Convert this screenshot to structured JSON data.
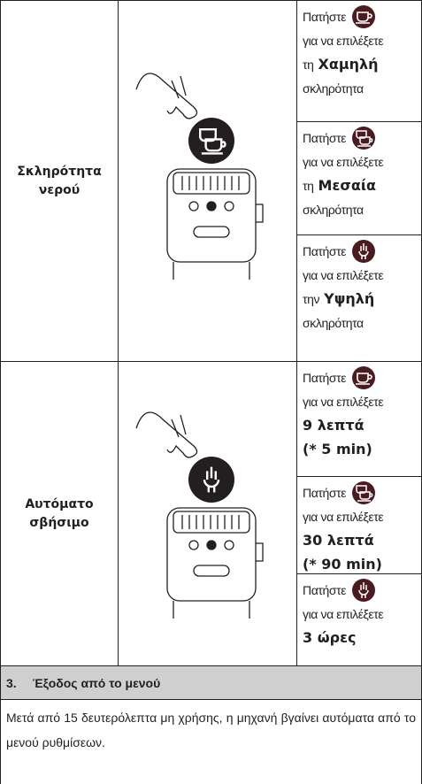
{
  "sections": [
    {
      "label": "Σκληρότητα νερού",
      "options": [
        {
          "lines": [
            [
              {
                "text": "Πατήστε"
              }
            ],
            [
              {
                "text": "για να επιλέξετε"
              }
            ],
            [
              {
                "text": "τη"
              },
              {
                "text": "Χαμηλή",
                "bold": true
              }
            ],
            [
              {
                "text": "σκληρότητα"
              }
            ]
          ]
        },
        {
          "lines": [
            [
              {
                "text": "Πατήστε"
              }
            ],
            [
              {
                "text": "για να επιλέξετε"
              }
            ],
            [
              {
                "text": "τη"
              },
              {
                "text": "Μεσαία",
                "bold": true
              }
            ],
            [
              {
                "text": "σκληρότητα"
              }
            ]
          ]
        },
        {
          "lines": [
            [
              {
                "text": "Πατήστε"
              }
            ],
            [
              {
                "text": "για να επιλέξετε"
              }
            ],
            [
              {
                "text": "την"
              },
              {
                "text": "Υψηλή",
                "bold": true
              }
            ],
            [
              {
                "text": "σκληρότητα"
              }
            ]
          ]
        }
      ]
    },
    {
      "label": "Αυτόματο σβήσιμο",
      "options": [
        {
          "lines": [
            [
              {
                "text": "Πατήστε"
              }
            ],
            [
              {
                "text": "για να επιλέξετε"
              }
            ],
            [
              {
                "text": "9 λεπτά",
                "bold": true
              }
            ],
            [
              {
                "text": "(* 5 min)",
                "bold": true
              }
            ]
          ]
        },
        {
          "lines": [
            [
              {
                "text": "Πατήστε"
              }
            ],
            [
              {
                "text": "για να επιλέξετε"
              }
            ],
            [
              {
                "text": "30 λεπτά",
                "bold": true
              }
            ],
            [
              {
                "text": "(* 90 min)",
                "bold": true
              }
            ]
          ]
        },
        {
          "lines": [
            [
              {
                "text": "Πατήστε"
              }
            ],
            [
              {
                "text": "για να επιλέξετε"
              }
            ],
            [
              {
                "text": "3 ώρες",
                "bold": true
              }
            ]
          ]
        }
      ]
    }
  ],
  "heading": {
    "number": "3.",
    "title": "Έξοδος από το μενού"
  },
  "paragraph": "Μετά από 15 δευτερόλεπτα μη χρήσης, η μηχανή βγαίνει αυτόματα από το μενού ρυθμίσεων."
}
